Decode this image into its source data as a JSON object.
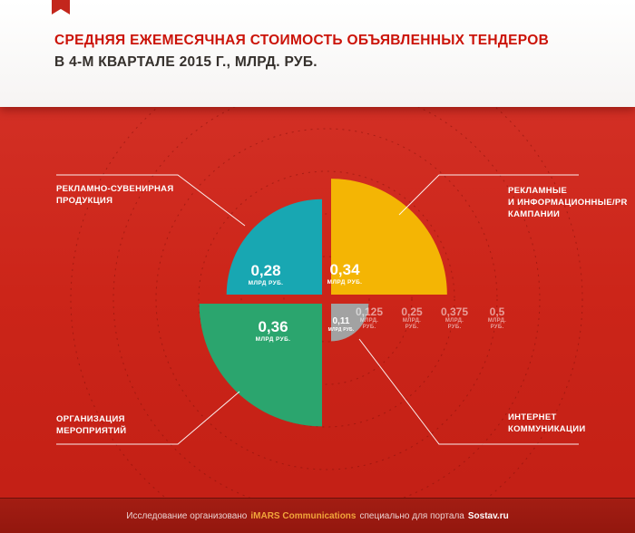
{
  "header": {
    "title_line1": "СРЕДНЯЯ ЕЖЕМЕСЯЧНАЯ СТОИМОСТЬ ОБЪЯВЛЕННЫХ ТЕНДЕРОВ",
    "title_line2": "В 4-М КВАРТАЛЕ 2015 Г., МЛРД. РУБ."
  },
  "chart_data": {
    "type": "pie",
    "subtype": "quarter-polar-rose",
    "title": "Средняя ежемесячная стоимость объявленных тендеров в 4-м квартале 2015 г., млрд. руб.",
    "unit": "млрд. руб.",
    "radial_max": 0.5,
    "tick_step": 0.125,
    "grid": "dashed-concentric-circles",
    "scale_ticks": [
      {
        "value": 0.125,
        "display": "0,125"
      },
      {
        "value": 0.25,
        "display": "0,25"
      },
      {
        "value": 0.375,
        "display": "0,375"
      },
      {
        "value": 0.5,
        "display": "0,5"
      }
    ],
    "scale_unit_line1": "МЛРД.",
    "scale_unit_line2": "РУБ.",
    "segments": [
      {
        "id": "promo",
        "label": "РЕКЛАМНО-СУВЕНИРНАЯ ПРОДУКЦИЯ",
        "value": 0.28,
        "display": "0,28",
        "unit": "МЛРД РУБ.",
        "color": "#18a7b2",
        "quadrant": "top-left"
      },
      {
        "id": "pr",
        "label": "РЕКЛАМНЫЕ И ИНФОРМАЦИОННЫЕ/PR КАМПАНИИ",
        "value": 0.34,
        "display": "0,34",
        "unit": "МЛРД РУБ.",
        "color": "#f4b504",
        "quadrant": "top-right"
      },
      {
        "id": "events",
        "label": "ОРГАНИЗАЦИЯ МЕРОПРИЯТИЙ",
        "value": 0.36,
        "display": "0,36",
        "unit": "МЛРД РУБ.",
        "color": "#2ba56e",
        "quadrant": "bottom-left"
      },
      {
        "id": "internet",
        "label": "ИНТЕРНЕТ КОММУНИКАЦИИ",
        "value": 0.11,
        "display": "0,11",
        "unit": "МЛРД РУБ.",
        "color": "#a2a2a2",
        "quadrant": "bottom-right"
      }
    ]
  },
  "callouts": {
    "top_left": {
      "lines": [
        "РЕКЛАМНО-СУВЕНИРНАЯ",
        "ПРОДУКЦИЯ"
      ]
    },
    "top_right": {
      "lines": [
        "РЕКЛАМНЫЕ",
        "И ИНФОРМАЦИОННЫЕ/PR",
        "КАМПАНИИ"
      ]
    },
    "bottom_left": {
      "lines": [
        "ОРГАНИЗАЦИЯ",
        "МЕРОПРИЯТИЙ"
      ]
    },
    "bottom_right": {
      "lines": [
        "ИНТЕРНЕТ",
        "КОММУНИКАЦИИ"
      ]
    }
  },
  "footer": {
    "prefix": "Исследование организовано",
    "brand": "iMARS Communications",
    "middle": "специально для портала",
    "site": "Sostav.ru"
  },
  "colors": {
    "background_red": "#cc2519",
    "footer_red": "#9c1a11",
    "title_red": "#cb1309",
    "title_dark": "#35302c",
    "brand_yellow": "#f2a63b",
    "grid_line": "#7f1009",
    "callout_line": "#ffffff"
  }
}
